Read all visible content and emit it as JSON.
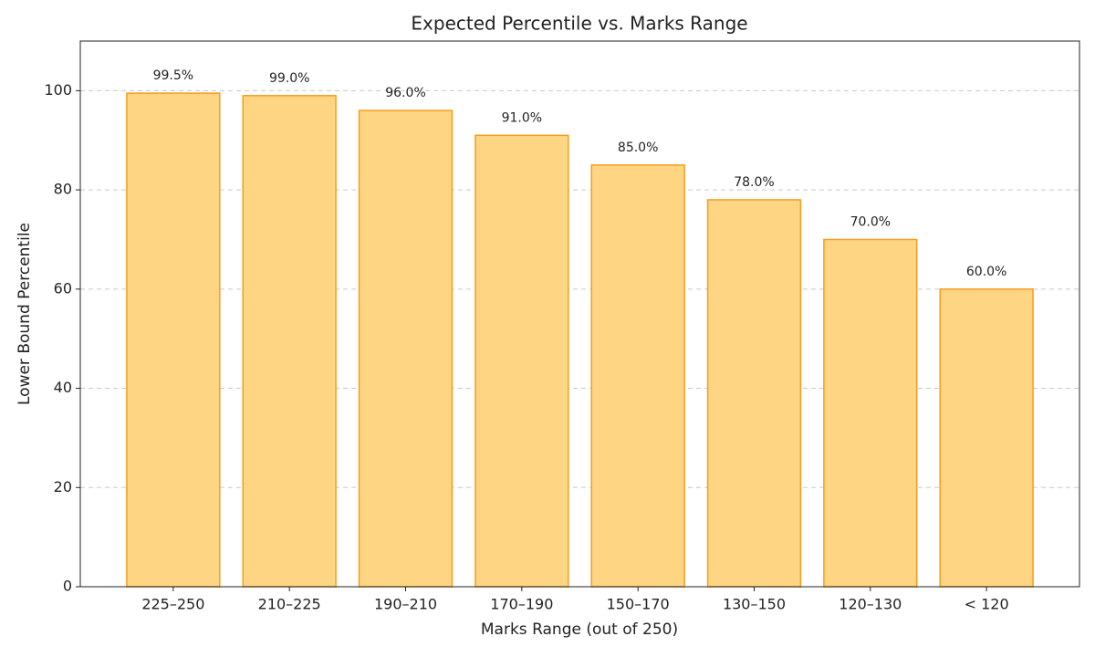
{
  "chart_data": {
    "type": "bar",
    "title": "Expected Percentile vs. Marks Range",
    "x_label": "Marks Range (out of 250)",
    "y_label": "Lower Bound Percentile",
    "categories": [
      "225–250",
      "210–225",
      "190–210",
      "170–190",
      "150–170",
      "130–150",
      "120–130",
      "< 120"
    ],
    "values": [
      99.5,
      99.0,
      96.0,
      91.0,
      85.0,
      78.0,
      70.0,
      60.0
    ],
    "value_labels": [
      "99.5%",
      "99.0%",
      "96.0%",
      "91.0%",
      "85.0%",
      "78.0%",
      "70.0%",
      "60.0%"
    ],
    "color": "#fdd583",
    "edge_color": "#f59d1f",
    "ylim": [
      0,
      110
    ],
    "yticks": [
      0,
      20,
      40,
      60,
      80,
      100
    ],
    "grid": true
  }
}
